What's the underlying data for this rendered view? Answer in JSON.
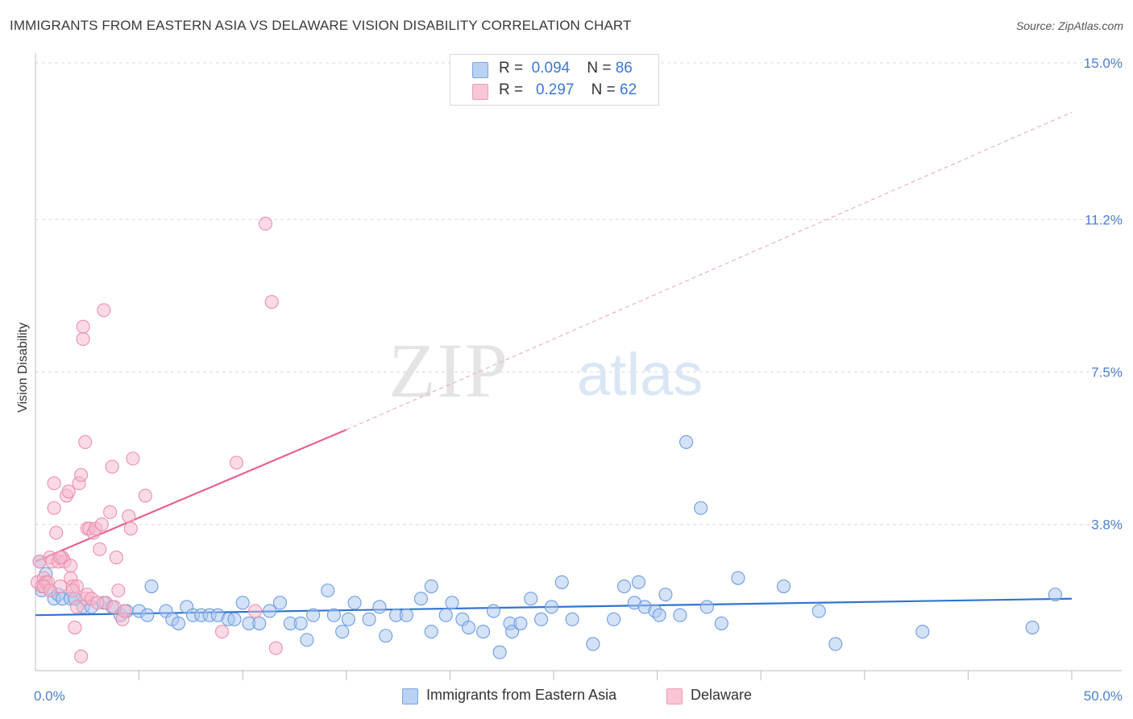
{
  "title": "IMMIGRANTS FROM EASTERN ASIA VS DELAWARE VISION DISABILITY CORRELATION CHART",
  "source": "Source: ZipAtlas.com",
  "watermark": {
    "zip": "ZIP",
    "atlas": "atlas"
  },
  "colors": {
    "blue_fill": "#a9c6ef",
    "blue_stroke": "#6d9ce0",
    "blue_line": "#2f74d0",
    "pink_fill": "#f5b8cb",
    "pink_stroke": "#ec8fae",
    "pink_line": "#e5628f",
    "axis_text": "#4a7fd0",
    "grid": "#d9d9d9"
  },
  "legend": {
    "rows": [
      {
        "r_label": "R =",
        "r_value": "0.094",
        "n_label": "N =",
        "n_value": "86"
      },
      {
        "r_label": "R =",
        "r_value": "0.297",
        "n_label": "N =",
        "n_value": "62"
      }
    ]
  },
  "bottom_legend": {
    "blue": "Immigrants from Eastern Asia",
    "pink": "Delaware"
  },
  "chart_data": {
    "type": "scatter",
    "xlabel": "",
    "ylabel": "Vision Disability",
    "xlim": [
      0,
      50
    ],
    "ylim": [
      0,
      15
    ],
    "x_tick_labels": [
      {
        "value": 0,
        "label": "0.0%"
      },
      {
        "value": 50,
        "label": "50.0%"
      }
    ],
    "y_tick_labels": [
      {
        "value": 3.8,
        "label": "3.8%"
      },
      {
        "value": 7.5,
        "label": "7.5%"
      },
      {
        "value": 11.2,
        "label": "11.2%"
      },
      {
        "value": 15.0,
        "label": "15.0%"
      }
    ],
    "series": [
      {
        "name": "Immigrants from Eastern Asia",
        "color": "blue",
        "r": 0.094,
        "n": 86,
        "trend": {
          "x": [
            0,
            50
          ],
          "y": [
            1.6,
            2.0
          ]
        },
        "points": [
          [
            0.3,
            2.2
          ],
          [
            0.5,
            2.6
          ],
          [
            0.7,
            2.2
          ],
          [
            0.9,
            2.0
          ],
          [
            1.1,
            2.1
          ],
          [
            1.3,
            2.0
          ],
          [
            1.7,
            2.0
          ],
          [
            1.9,
            2.0
          ],
          [
            2.3,
            1.8
          ],
          [
            2.7,
            1.8
          ],
          [
            3.3,
            1.9
          ],
          [
            3.7,
            1.8
          ],
          [
            4.1,
            1.6
          ],
          [
            4.4,
            1.7
          ],
          [
            5.0,
            1.7
          ],
          [
            5.4,
            1.6
          ],
          [
            5.6,
            2.3
          ],
          [
            6.3,
            1.7
          ],
          [
            6.6,
            1.5
          ],
          [
            6.9,
            1.4
          ],
          [
            7.3,
            1.8
          ],
          [
            7.6,
            1.6
          ],
          [
            8.0,
            1.6
          ],
          [
            8.4,
            1.6
          ],
          [
            8.8,
            1.6
          ],
          [
            9.3,
            1.5
          ],
          [
            9.6,
            1.5
          ],
          [
            10.0,
            1.9
          ],
          [
            10.3,
            1.4
          ],
          [
            10.8,
            1.4
          ],
          [
            11.3,
            1.7
          ],
          [
            11.8,
            1.9
          ],
          [
            12.3,
            1.4
          ],
          [
            12.8,
            1.4
          ],
          [
            13.1,
            1.0
          ],
          [
            13.4,
            1.6
          ],
          [
            14.1,
            2.2
          ],
          [
            14.4,
            1.6
          ],
          [
            14.8,
            1.2
          ],
          [
            15.1,
            1.5
          ],
          [
            15.4,
            1.9
          ],
          [
            16.1,
            1.5
          ],
          [
            16.6,
            1.8
          ],
          [
            16.9,
            1.1
          ],
          [
            17.4,
            1.6
          ],
          [
            17.9,
            1.6
          ],
          [
            18.6,
            2.0
          ],
          [
            19.1,
            1.2
          ],
          [
            19.1,
            2.3
          ],
          [
            19.8,
            1.6
          ],
          [
            20.1,
            1.9
          ],
          [
            20.6,
            1.5
          ],
          [
            20.9,
            1.3
          ],
          [
            21.6,
            1.2
          ],
          [
            22.1,
            1.7
          ],
          [
            22.4,
            0.7
          ],
          [
            22.9,
            1.4
          ],
          [
            23.0,
            1.2
          ],
          [
            23.4,
            1.4
          ],
          [
            23.9,
            2.0
          ],
          [
            24.4,
            1.5
          ],
          [
            24.9,
            1.8
          ],
          [
            25.4,
            2.4
          ],
          [
            25.9,
            1.5
          ],
          [
            26.9,
            0.9
          ],
          [
            27.9,
            1.5
          ],
          [
            28.4,
            2.3
          ],
          [
            28.9,
            1.9
          ],
          [
            29.1,
            2.4
          ],
          [
            29.4,
            1.8
          ],
          [
            29.9,
            1.7
          ],
          [
            30.1,
            1.6
          ],
          [
            30.4,
            2.1
          ],
          [
            31.1,
            1.6
          ],
          [
            31.4,
            5.8
          ],
          [
            32.1,
            4.2
          ],
          [
            32.4,
            1.8
          ],
          [
            33.1,
            1.4
          ],
          [
            33.9,
            2.5
          ],
          [
            36.1,
            2.3
          ],
          [
            37.8,
            1.7
          ],
          [
            38.6,
            0.9
          ],
          [
            42.8,
            1.2
          ],
          [
            48.1,
            1.3
          ],
          [
            49.2,
            2.1
          ],
          [
            0.2,
            2.9
          ]
        ]
      },
      {
        "name": "Delaware",
        "color": "pink",
        "r": 0.297,
        "n": 62,
        "trend": {
          "x": [
            0,
            15
          ],
          "y": [
            2.9,
            6.1
          ],
          "dashed_x": [
            15,
            50
          ],
          "dashed_y": [
            6.1,
            13.8
          ]
        },
        "points": [
          [
            0.1,
            2.4
          ],
          [
            0.2,
            2.9
          ],
          [
            0.3,
            2.3
          ],
          [
            0.4,
            2.5
          ],
          [
            0.5,
            2.4
          ],
          [
            0.6,
            2.4
          ],
          [
            0.7,
            3.0
          ],
          [
            0.8,
            2.9
          ],
          [
            0.9,
            4.8
          ],
          [
            0.9,
            4.2
          ],
          [
            1.0,
            3.6
          ],
          [
            1.1,
            2.9
          ],
          [
            1.2,
            2.3
          ],
          [
            1.3,
            3.0
          ],
          [
            1.4,
            2.9
          ],
          [
            1.5,
            4.5
          ],
          [
            1.6,
            4.6
          ],
          [
            1.7,
            2.5
          ],
          [
            1.7,
            2.8
          ],
          [
            1.8,
            2.3
          ],
          [
            1.9,
            1.3
          ],
          [
            2.0,
            2.3
          ],
          [
            2.1,
            4.8
          ],
          [
            2.2,
            5.0
          ],
          [
            2.2,
            0.6
          ],
          [
            2.3,
            8.3
          ],
          [
            2.3,
            8.6
          ],
          [
            2.4,
            5.8
          ],
          [
            2.4,
            2.0
          ],
          [
            2.5,
            3.7
          ],
          [
            2.5,
            2.1
          ],
          [
            2.6,
            3.7
          ],
          [
            2.7,
            2.0
          ],
          [
            2.8,
            3.6
          ],
          [
            2.9,
            3.7
          ],
          [
            3.1,
            3.2
          ],
          [
            3.2,
            3.8
          ],
          [
            3.3,
            9.0
          ],
          [
            3.4,
            1.9
          ],
          [
            3.6,
            4.1
          ],
          [
            3.7,
            5.2
          ],
          [
            3.8,
            1.8
          ],
          [
            3.9,
            3.0
          ],
          [
            4.0,
            2.2
          ],
          [
            4.2,
            1.5
          ],
          [
            4.3,
            1.7
          ],
          [
            4.5,
            4.0
          ],
          [
            4.6,
            3.7
          ],
          [
            4.7,
            5.4
          ],
          [
            5.3,
            4.5
          ],
          [
            9.0,
            1.2
          ],
          [
            9.7,
            5.3
          ],
          [
            10.6,
            1.7
          ],
          [
            11.1,
            11.1
          ],
          [
            11.4,
            9.2
          ],
          [
            11.6,
            0.8
          ],
          [
            0.4,
            2.3
          ],
          [
            1.2,
            3.0
          ],
          [
            2.0,
            1.8
          ],
          [
            3.0,
            1.9
          ],
          [
            0.7,
            2.2
          ],
          [
            1.8,
            2.2
          ]
        ]
      }
    ]
  }
}
